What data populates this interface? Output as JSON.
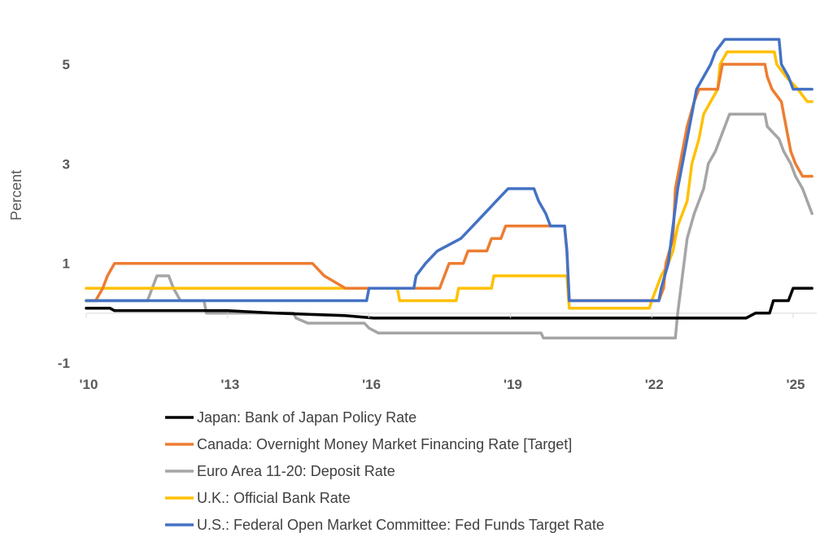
{
  "chart_data": {
    "type": "line",
    "ylabel": "Percent",
    "xlabel": "",
    "ylim": [
      -1,
      5.5
    ],
    "xlim": [
      2010.0,
      2025.5
    ],
    "grid": false,
    "legend_position": "bottom",
    "y_ticks": [
      {
        "value": -1,
        "label": "-1"
      },
      {
        "value": 1,
        "label": "1"
      },
      {
        "value": 3,
        "label": "3"
      },
      {
        "value": 5,
        "label": "5"
      }
    ],
    "x_ticks": [
      {
        "value": 2010,
        "label": "'10"
      },
      {
        "value": 2013,
        "label": "'13"
      },
      {
        "value": 2016,
        "label": "'16"
      },
      {
        "value": 2019,
        "label": "'19"
      },
      {
        "value": 2022,
        "label": "'22"
      },
      {
        "value": 2025,
        "label": "'25"
      }
    ],
    "series": [
      {
        "name": "Japan: Bank of Japan Policy Rate",
        "color": "#000000",
        "points": [
          [
            2010.0,
            0.1
          ],
          [
            2010.5,
            0.1
          ],
          [
            2010.6,
            0.05
          ],
          [
            2013.0,
            0.05
          ],
          [
            2014.0,
            0.0
          ],
          [
            2015.5,
            -0.05
          ],
          [
            2016.1,
            -0.1
          ],
          [
            2024.0,
            -0.1
          ],
          [
            2024.2,
            0.0
          ],
          [
            2024.5,
            0.0
          ],
          [
            2024.58,
            0.25
          ],
          [
            2024.9,
            0.25
          ],
          [
            2025.0,
            0.5
          ],
          [
            2025.4,
            0.5
          ]
        ]
      },
      {
        "name": "Canada: Overnight Money Market Financing Rate [Target]",
        "color": "#ED7D31",
        "points": [
          [
            2010.0,
            0.25
          ],
          [
            2010.2,
            0.25
          ],
          [
            2010.35,
            0.5
          ],
          [
            2010.45,
            0.75
          ],
          [
            2010.6,
            1.0
          ],
          [
            2014.8,
            1.0
          ],
          [
            2015.05,
            0.75
          ],
          [
            2015.5,
            0.5
          ],
          [
            2017.5,
            0.5
          ],
          [
            2017.6,
            0.75
          ],
          [
            2017.7,
            1.0
          ],
          [
            2018.0,
            1.0
          ],
          [
            2018.1,
            1.25
          ],
          [
            2018.5,
            1.25
          ],
          [
            2018.6,
            1.5
          ],
          [
            2018.8,
            1.5
          ],
          [
            2018.9,
            1.75
          ],
          [
            2020.15,
            1.75
          ],
          [
            2020.2,
            1.25
          ],
          [
            2020.25,
            0.25
          ],
          [
            2022.15,
            0.25
          ],
          [
            2022.25,
            0.5
          ],
          [
            2022.3,
            1.0
          ],
          [
            2022.45,
            1.5
          ],
          [
            2022.5,
            2.5
          ],
          [
            2022.65,
            3.25
          ],
          [
            2022.75,
            3.75
          ],
          [
            2022.9,
            4.25
          ],
          [
            2023.0,
            4.5
          ],
          [
            2023.4,
            4.5
          ],
          [
            2023.45,
            4.75
          ],
          [
            2023.5,
            5.0
          ],
          [
            2024.4,
            5.0
          ],
          [
            2024.45,
            4.75
          ],
          [
            2024.55,
            4.5
          ],
          [
            2024.75,
            4.25
          ],
          [
            2024.85,
            3.75
          ],
          [
            2024.95,
            3.25
          ],
          [
            2025.05,
            3.0
          ],
          [
            2025.2,
            2.75
          ],
          [
            2025.4,
            2.75
          ]
        ]
      },
      {
        "name": "Euro Area 11-20: Deposit Rate",
        "color": "#A5A5A5",
        "points": [
          [
            2010.0,
            0.25
          ],
          [
            2011.3,
            0.25
          ],
          [
            2011.4,
            0.5
          ],
          [
            2011.5,
            0.75
          ],
          [
            2011.75,
            0.75
          ],
          [
            2011.85,
            0.5
          ],
          [
            2012.0,
            0.25
          ],
          [
            2012.5,
            0.25
          ],
          [
            2012.55,
            0.0
          ],
          [
            2014.4,
            0.0
          ],
          [
            2014.45,
            -0.1
          ],
          [
            2014.7,
            -0.2
          ],
          [
            2015.9,
            -0.2
          ],
          [
            2016.0,
            -0.3
          ],
          [
            2016.2,
            -0.4
          ],
          [
            2019.65,
            -0.4
          ],
          [
            2019.7,
            -0.5
          ],
          [
            2022.5,
            -0.5
          ],
          [
            2022.55,
            0.0
          ],
          [
            2022.65,
            0.75
          ],
          [
            2022.75,
            1.5
          ],
          [
            2022.9,
            2.0
          ],
          [
            2023.1,
            2.5
          ],
          [
            2023.2,
            3.0
          ],
          [
            2023.35,
            3.25
          ],
          [
            2023.45,
            3.5
          ],
          [
            2023.55,
            3.75
          ],
          [
            2023.65,
            4.0
          ],
          [
            2024.4,
            4.0
          ],
          [
            2024.45,
            3.75
          ],
          [
            2024.7,
            3.5
          ],
          [
            2024.8,
            3.25
          ],
          [
            2024.95,
            3.0
          ],
          [
            2025.05,
            2.75
          ],
          [
            2025.2,
            2.5
          ],
          [
            2025.3,
            2.25
          ],
          [
            2025.4,
            2.0
          ]
        ]
      },
      {
        "name": "U.K.: Official Bank Rate",
        "color": "#FFC000",
        "points": [
          [
            2010.0,
            0.5
          ],
          [
            2016.6,
            0.5
          ],
          [
            2016.65,
            0.25
          ],
          [
            2017.85,
            0.25
          ],
          [
            2017.9,
            0.5
          ],
          [
            2018.6,
            0.5
          ],
          [
            2018.65,
            0.75
          ],
          [
            2020.2,
            0.75
          ],
          [
            2020.25,
            0.1
          ],
          [
            2021.95,
            0.1
          ],
          [
            2022.0,
            0.25
          ],
          [
            2022.1,
            0.5
          ],
          [
            2022.2,
            0.75
          ],
          [
            2022.35,
            1.0
          ],
          [
            2022.45,
            1.25
          ],
          [
            2022.55,
            1.75
          ],
          [
            2022.75,
            2.25
          ],
          [
            2022.85,
            3.0
          ],
          [
            2023.0,
            3.5
          ],
          [
            2023.1,
            4.0
          ],
          [
            2023.25,
            4.25
          ],
          [
            2023.4,
            4.5
          ],
          [
            2023.45,
            5.0
          ],
          [
            2023.6,
            5.25
          ],
          [
            2024.6,
            5.25
          ],
          [
            2024.65,
            5.0
          ],
          [
            2024.85,
            4.75
          ],
          [
            2025.1,
            4.5
          ],
          [
            2025.3,
            4.25
          ],
          [
            2025.4,
            4.25
          ]
        ]
      },
      {
        "name": "U.S.: Federal Open Market Committee: Fed Funds Target Rate",
        "color": "#4472C4",
        "points": [
          [
            2010.0,
            0.25
          ],
          [
            2015.95,
            0.25
          ],
          [
            2016.0,
            0.5
          ],
          [
            2016.95,
            0.5
          ],
          [
            2017.0,
            0.75
          ],
          [
            2017.2,
            1.0
          ],
          [
            2017.45,
            1.25
          ],
          [
            2017.95,
            1.5
          ],
          [
            2018.2,
            1.75
          ],
          [
            2018.45,
            2.0
          ],
          [
            2018.7,
            2.25
          ],
          [
            2018.95,
            2.5
          ],
          [
            2019.5,
            2.5
          ],
          [
            2019.6,
            2.25
          ],
          [
            2019.75,
            2.0
          ],
          [
            2019.85,
            1.75
          ],
          [
            2020.15,
            1.75
          ],
          [
            2020.2,
            1.25
          ],
          [
            2020.25,
            0.25
          ],
          [
            2022.15,
            0.25
          ],
          [
            2022.2,
            0.5
          ],
          [
            2022.35,
            1.0
          ],
          [
            2022.45,
            1.75
          ],
          [
            2022.55,
            2.5
          ],
          [
            2022.7,
            3.25
          ],
          [
            2022.85,
            4.0
          ],
          [
            2022.95,
            4.5
          ],
          [
            2023.1,
            4.75
          ],
          [
            2023.25,
            5.0
          ],
          [
            2023.35,
            5.25
          ],
          [
            2023.55,
            5.5
          ],
          [
            2024.7,
            5.5
          ],
          [
            2024.75,
            5.0
          ],
          [
            2024.9,
            4.75
          ],
          [
            2025.0,
            4.5
          ],
          [
            2025.4,
            4.5
          ]
        ]
      }
    ]
  }
}
